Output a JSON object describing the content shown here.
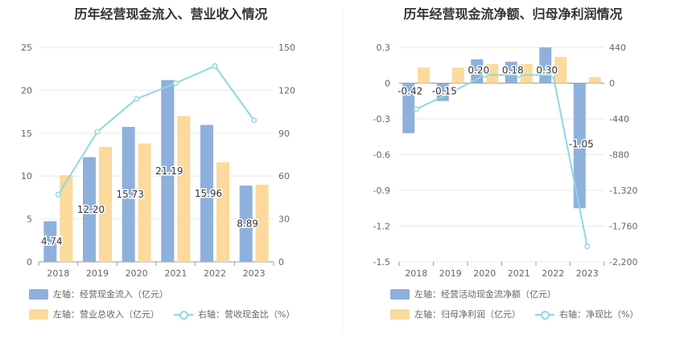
{
  "colors": {
    "bar1": "#8eb0dc",
    "bar2": "#fcd99c",
    "line": "#8ed8df",
    "axis_text": "#666666",
    "grid": "#e8e8e8",
    "label": "#333333"
  },
  "chart_data": [
    {
      "type": "bar",
      "title": "历年经营现金流入、营业收入情况",
      "categories": [
        "2018",
        "2019",
        "2020",
        "2021",
        "2022",
        "2023"
      ],
      "left_axis": {
        "ylim": [
          0,
          25
        ],
        "ticks": [
          "0",
          "5",
          "10",
          "15",
          "20",
          "25"
        ]
      },
      "right_axis": {
        "ylim": [
          0,
          150
        ],
        "ticks": [
          "0",
          "30",
          "60",
          "90",
          "120",
          "150"
        ]
      },
      "series": [
        {
          "name": "左轴：经营现金流入（亿元）",
          "kind": "bar",
          "axis": "left",
          "values": [
            4.74,
            12.2,
            15.73,
            21.19,
            15.96,
            8.89
          ],
          "labels": [
            "4.74",
            "12.20",
            "15.73",
            "21.19",
            "15.96",
            "8.89"
          ]
        },
        {
          "name": "左轴：营业总收入（亿元）",
          "kind": "bar",
          "axis": "left",
          "values": [
            10.1,
            13.4,
            13.8,
            17.0,
            11.6,
            9.0
          ]
        },
        {
          "name": "右轴：营收现金比（%）",
          "kind": "line",
          "axis": "right",
          "values": [
            47,
            91,
            114,
            125,
            137,
            99
          ]
        }
      ],
      "legend": "bottom"
    },
    {
      "type": "bar",
      "title": "历年经营现金流净额、归母净利润情况",
      "categories": [
        "2018",
        "2019",
        "2020",
        "2021",
        "2022",
        "2023"
      ],
      "left_axis": {
        "ylim": [
          -1.5,
          0.3
        ],
        "ticks": [
          "0.3",
          "0",
          "-0.3",
          "-0.6",
          "-0.9",
          "-1.2",
          "-1.5"
        ]
      },
      "right_axis": {
        "ylim": [
          -2200,
          440
        ],
        "ticks": [
          "440",
          "0",
          "-440",
          "-880",
          "-1,320",
          "-1,760",
          "-2,200"
        ]
      },
      "series": [
        {
          "name": "左轴：经营活动现金流净额（亿元）",
          "kind": "bar",
          "axis": "left",
          "values": [
            -0.42,
            -0.15,
            0.2,
            0.18,
            0.3,
            -1.05
          ],
          "labels": [
            "-0.42",
            "-0.15",
            "0.20",
            "0.18",
            "0.30",
            "-1.05"
          ]
        },
        {
          "name": "左轴：归母净利润（亿元）",
          "kind": "bar",
          "axis": "left",
          "values": [
            0.13,
            0.13,
            0.16,
            0.16,
            0.22,
            0.05
          ]
        },
        {
          "name": "右轴：净现比（%）",
          "kind": "line",
          "axis": "right",
          "values": [
            -320,
            -120,
            100,
            100,
            100,
            -2010
          ]
        }
      ],
      "legend": "bottom"
    }
  ]
}
